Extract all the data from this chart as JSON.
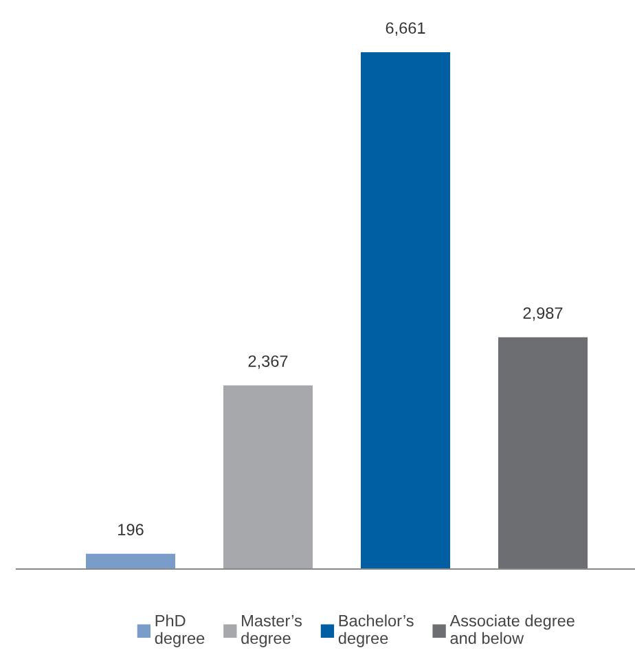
{
  "chart_data": {
    "type": "bar",
    "stacked": true,
    "categories": [
      null,
      null,
      null,
      null
    ],
    "series": [
      {
        "name": "PhD\ndegree",
        "color": "#7a9cc8",
        "values": [
          196,
          null,
          null,
          null
        ],
        "value_labels": [
          "196",
          null,
          null,
          null
        ]
      },
      {
        "name": "Master’s\ndegree",
        "color": "#a7a8ab",
        "values": [
          null,
          2367,
          null,
          null
        ],
        "value_labels": [
          null,
          "2,367",
          null,
          null
        ]
      },
      {
        "name": "Bachelor’s\ndegree",
        "color": "#005ea2",
        "values": [
          null,
          null,
          6661,
          null
        ],
        "value_labels": [
          null,
          null,
          "6,661",
          null
        ]
      },
      {
        "name": "Associate degree\nand below",
        "color": "#6d6e71",
        "values": [
          null,
          null,
          null,
          2987
        ],
        "value_labels": [
          null,
          null,
          null,
          "2,987"
        ]
      }
    ],
    "legend": "bottom"
  }
}
